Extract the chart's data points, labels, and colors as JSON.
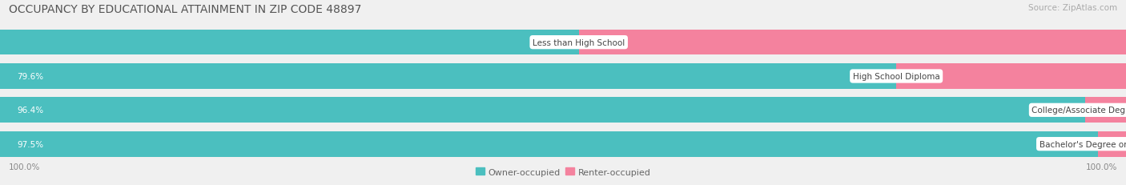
{
  "title": "OCCUPANCY BY EDUCATIONAL ATTAINMENT IN ZIP CODE 48897",
  "source": "Source: ZipAtlas.com",
  "categories": [
    "Less than High School",
    "High School Diploma",
    "College/Associate Degree",
    "Bachelor's Degree or higher"
  ],
  "owner_pct": [
    51.4,
    79.6,
    96.4,
    97.5
  ],
  "renter_pct": [
    48.7,
    20.4,
    3.6,
    2.5
  ],
  "owner_color": "#4BBFBF",
  "renter_color": "#F4829E",
  "bg_color": "#f0f0f0",
  "bar_bg_color": "#e0e0e0",
  "title_fontsize": 10,
  "source_fontsize": 7.5,
  "bar_label_fontsize": 7.5,
  "category_fontsize": 7.5,
  "legend_fontsize": 8,
  "axis_fontsize": 7.5
}
